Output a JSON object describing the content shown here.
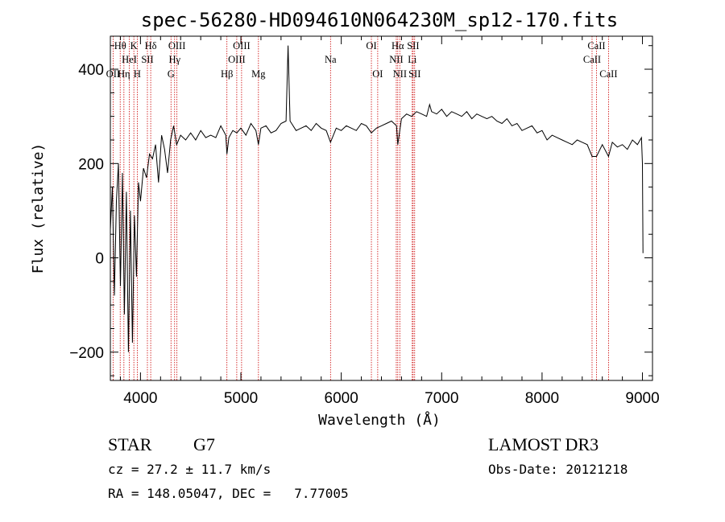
{
  "chart_data": {
    "type": "line",
    "title": "spec-56280-HD094610N064230M_sp12-170.fits",
    "xlabel": "Wavelength (Å)",
    "ylabel": "Flux (relative)",
    "xlim": [
      3700,
      9100
    ],
    "ylim": [
      -260,
      470
    ],
    "x_ticks": [
      4000,
      5000,
      6000,
      7000,
      8000,
      9000
    ],
    "y_ticks": [
      -200,
      0,
      200,
      400
    ],
    "grid": false,
    "series": [
      {
        "name": "spectrum",
        "x": [
          3700,
          3720,
          3740,
          3760,
          3780,
          3800,
          3820,
          3840,
          3860,
          3880,
          3900,
          3920,
          3940,
          3960,
          3980,
          4000,
          4030,
          4060,
          4090,
          4120,
          4150,
          4180,
          4210,
          4240,
          4270,
          4300,
          4330,
          4360,
          4400,
          4450,
          4500,
          4550,
          4600,
          4650,
          4700,
          4750,
          4800,
          4850,
          4861,
          4880,
          4920,
          4960,
          5000,
          5050,
          5100,
          5150,
          5175,
          5200,
          5250,
          5300,
          5350,
          5400,
          5450,
          5470,
          5490,
          5550,
          5600,
          5650,
          5700,
          5750,
          5800,
          5850,
          5893,
          5950,
          6000,
          6050,
          6100,
          6150,
          6200,
          6250,
          6300,
          6350,
          6400,
          6450,
          6500,
          6550,
          6563,
          6600,
          6650,
          6700,
          6750,
          6800,
          6850,
          6880,
          6900,
          6950,
          7000,
          7050,
          7100,
          7150,
          7200,
          7250,
          7300,
          7350,
          7400,
          7450,
          7500,
          7550,
          7600,
          7650,
          7700,
          7750,
          7800,
          7850,
          7900,
          7950,
          8000,
          8050,
          8100,
          8150,
          8200,
          8250,
          8300,
          8350,
          8400,
          8450,
          8498,
          8542,
          8600,
          8662,
          8700,
          8750,
          8800,
          8850,
          8900,
          8950,
          8990,
          9000,
          9005
        ],
        "y": [
          60,
          150,
          -80,
          120,
          200,
          -60,
          180,
          -120,
          140,
          -200,
          100,
          -180,
          90,
          -40,
          160,
          120,
          190,
          170,
          220,
          210,
          240,
          160,
          260,
          230,
          180,
          250,
          280,
          240,
          260,
          250,
          265,
          250,
          270,
          255,
          260,
          255,
          280,
          260,
          220,
          255,
          270,
          265,
          275,
          260,
          285,
          270,
          240,
          275,
          280,
          265,
          270,
          285,
          290,
          450,
          290,
          270,
          275,
          280,
          270,
          285,
          275,
          270,
          245,
          275,
          270,
          280,
          275,
          270,
          285,
          280,
          265,
          275,
          280,
          285,
          290,
          280,
          240,
          295,
          305,
          300,
          310,
          305,
          300,
          325,
          310,
          305,
          315,
          300,
          310,
          305,
          300,
          310,
          295,
          305,
          300,
          295,
          300,
          290,
          285,
          295,
          280,
          285,
          270,
          275,
          280,
          265,
          270,
          250,
          260,
          255,
          250,
          245,
          240,
          250,
          245,
          240,
          215,
          215,
          240,
          215,
          245,
          235,
          240,
          230,
          250,
          240,
          255,
          200,
          10
        ]
      }
    ],
    "line_ids": [
      {
        "name": "OII",
        "wavelength": 3727,
        "row": 2
      },
      {
        "name": "Hθ",
        "wavelength": 3798,
        "row": 0
      },
      {
        "name": "Hη",
        "wavelength": 3835,
        "row": 2
      },
      {
        "name": "HeI",
        "wavelength": 3889,
        "row": 1
      },
      {
        "name": "K",
        "wavelength": 3934,
        "row": 0
      },
      {
        "name": "H",
        "wavelength": 3968,
        "row": 2
      },
      {
        "name": "SII",
        "wavelength": 4069,
        "row": 1
      },
      {
        "name": "Hδ",
        "wavelength": 4102,
        "row": 0
      },
      {
        "name": "G",
        "wavelength": 4304,
        "row": 2
      },
      {
        "name": "Hγ",
        "wavelength": 4340,
        "row": 1
      },
      {
        "name": "OIII",
        "wavelength": 4363,
        "row": 0
      },
      {
        "name": "Hβ",
        "wavelength": 4861,
        "row": 2
      },
      {
        "name": "OIII",
        "wavelength": 4959,
        "row": 1
      },
      {
        "name": "OIII",
        "wavelength": 5007,
        "row": 0
      },
      {
        "name": "Mg",
        "wavelength": 5175,
        "row": 2
      },
      {
        "name": "Na",
        "wavelength": 5893,
        "row": 1
      },
      {
        "name": "OI",
        "wavelength": 6300,
        "row": 0
      },
      {
        "name": "OI",
        "wavelength": 6363,
        "row": 2
      },
      {
        "name": "NII",
        "wavelength": 6548,
        "row": 1
      },
      {
        "name": "Hα",
        "wavelength": 6563,
        "row": 0
      },
      {
        "name": "NII",
        "wavelength": 6583,
        "row": 2
      },
      {
        "name": "Li",
        "wavelength": 6707,
        "row": 1
      },
      {
        "name": "SII",
        "wavelength": 6716,
        "row": 0
      },
      {
        "name": "SII",
        "wavelength": 6731,
        "row": 2
      },
      {
        "name": "CaII",
        "wavelength": 8498,
        "row": 1
      },
      {
        "name": "CaII",
        "wavelength": 8542,
        "row": 0
      },
      {
        "name": "CaII",
        "wavelength": 8662,
        "row": 2
      }
    ]
  },
  "info": {
    "object_type": "STAR",
    "subclass": "G7",
    "survey": "LAMOST DR3",
    "cz": "cz = 27.2 ± 11.7 km/s",
    "obs_date": "Obs-Date: 20121218",
    "coords": "RA = 148.05047, DEC =   7.77005"
  },
  "colors": {
    "spectrum": "#000000",
    "line_markers": "#cc0000",
    "axes": "#000000"
  }
}
